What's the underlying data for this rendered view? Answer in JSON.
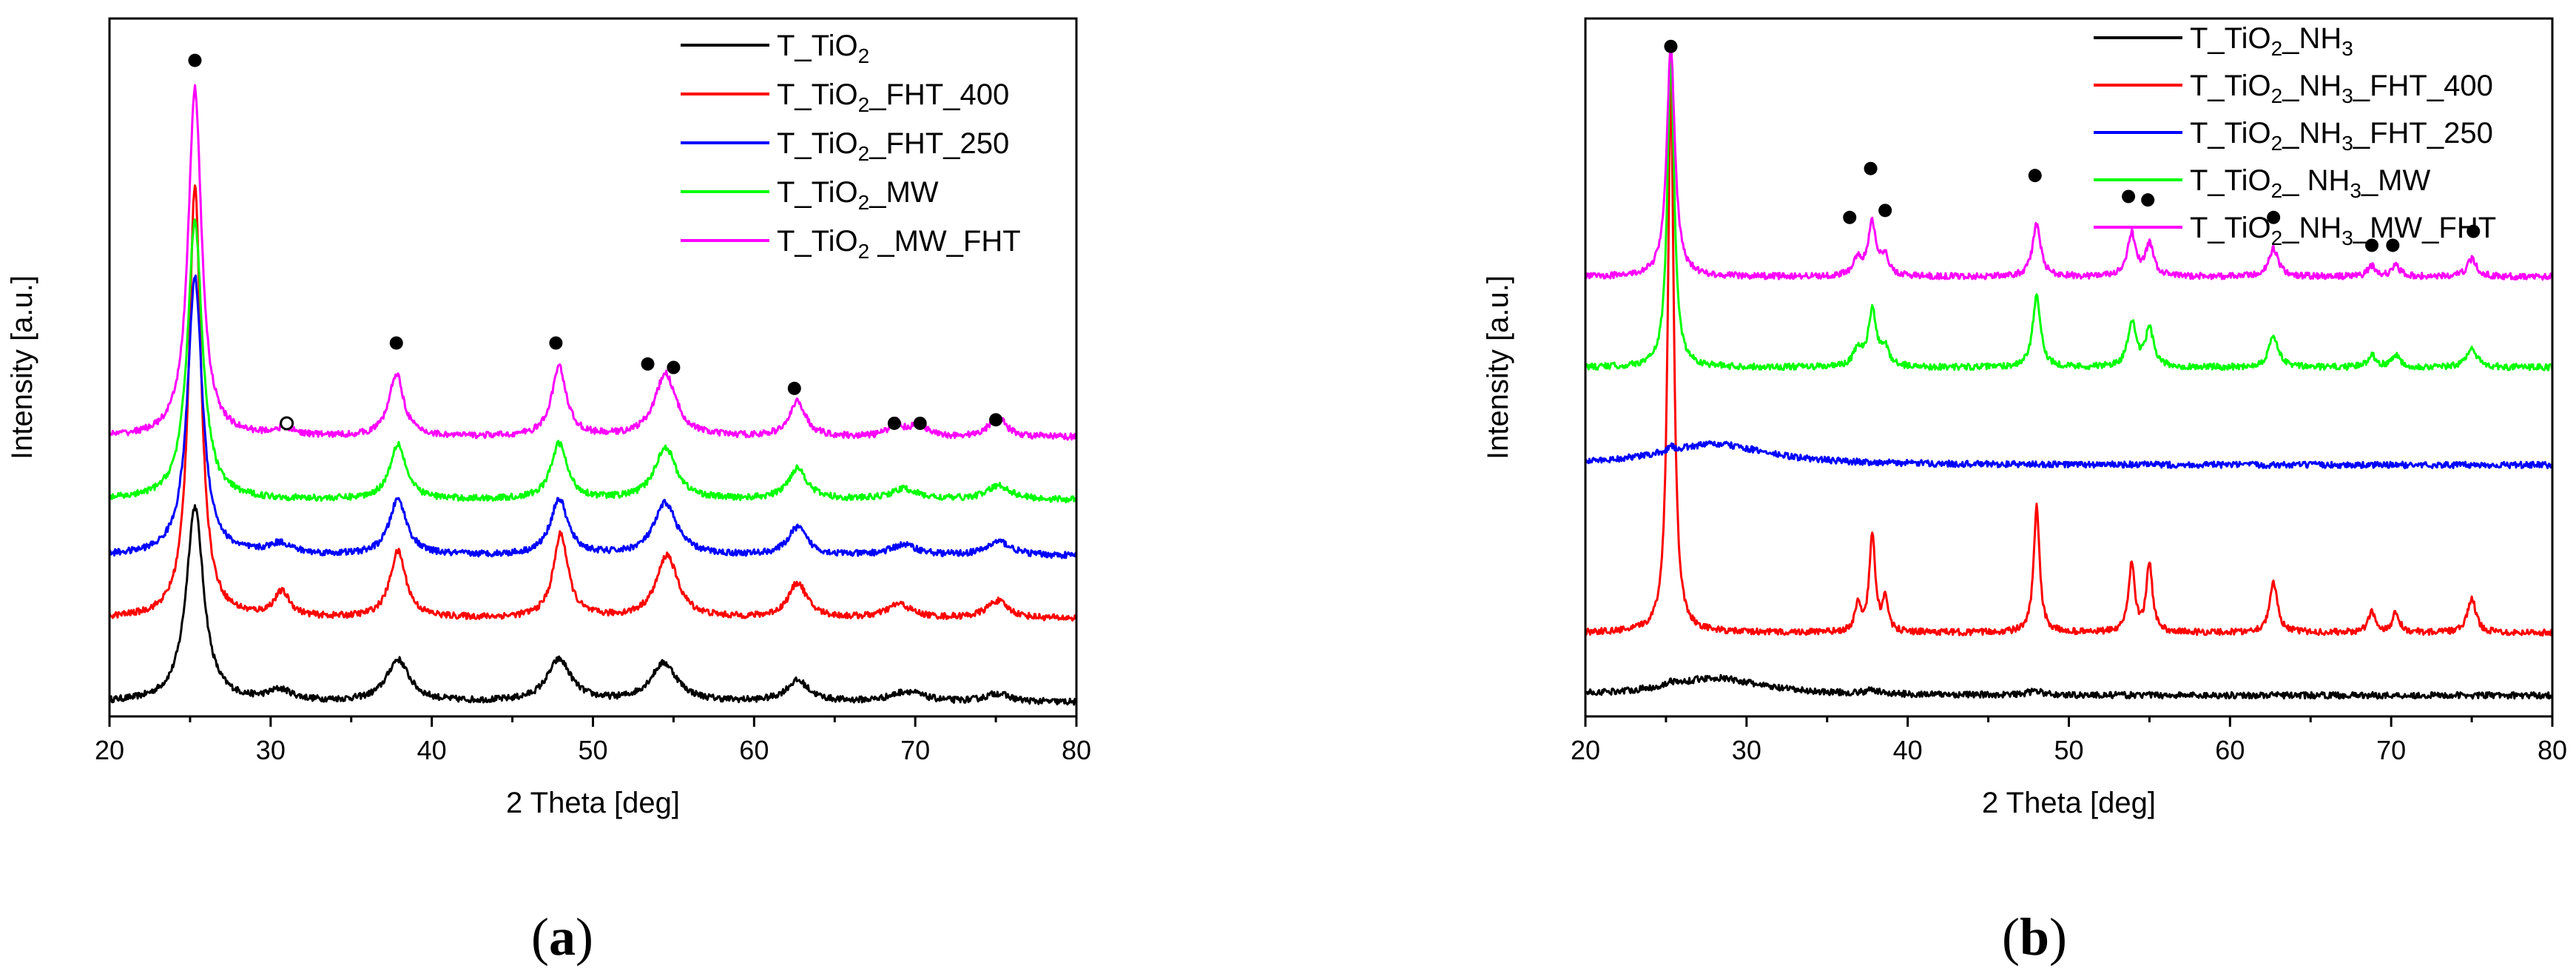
{
  "chart_data": [
    {
      "panel_label": "a",
      "type": "line",
      "xlabel": "2 Theta [deg]",
      "ylabel": "Intensity [a.u.]",
      "xlim": [
        20,
        80
      ],
      "ylim": [
        0,
        100
      ],
      "xticks": [
        "20",
        "30",
        "40",
        "50",
        "60",
        "70",
        "80"
      ],
      "legend_position": "top-right",
      "series": [
        {
          "name": "T_TiO2",
          "legend": [
            "T_TiO",
            "2",
            ""
          ],
          "color": "#000000",
          "offset": 2,
          "peaks": [
            [
              25.3,
              28,
              0.65
            ],
            [
              30.6,
              1.5,
              0.9
            ],
            [
              37.9,
              6,
              0.85
            ],
            [
              47.9,
              6,
              0.9
            ],
            [
              54.4,
              5.5,
              1.0
            ],
            [
              62.7,
              3,
              0.85
            ],
            [
              69.5,
              1.5,
              1.2
            ],
            [
              75.1,
              1.2,
              0.9
            ]
          ]
        },
        {
          "name": "T_TiO2_FHT_400",
          "legend": [
            "T_TiO",
            "2",
            "_FHT_400"
          ],
          "color": "#ff0000",
          "offset": 14,
          "peaks": [
            [
              25.3,
              62,
              0.45
            ],
            [
              30.7,
              3.5,
              0.6
            ],
            [
              37.9,
              9.5,
              0.6
            ],
            [
              48.0,
              12,
              0.55
            ],
            [
              54.6,
              9,
              0.8
            ],
            [
              62.7,
              5,
              0.7
            ],
            [
              69.0,
              2,
              0.9
            ],
            [
              75.1,
              2.5,
              0.8
            ]
          ]
        },
        {
          "name": "T_TiO2_FHT_250",
          "legend": [
            "T_TiO",
            "2",
            "_FHT_250"
          ],
          "color": "#0000ff",
          "offset": 23,
          "peaks": [
            [
              25.3,
              40,
              0.55
            ],
            [
              30.6,
              1.5,
              0.9
            ],
            [
              37.9,
              8,
              0.65
            ],
            [
              47.9,
              8,
              0.65
            ],
            [
              54.5,
              7.5,
              0.85
            ],
            [
              62.7,
              4,
              0.7
            ],
            [
              69.3,
              1.5,
              1.0
            ],
            [
              75.2,
              2,
              0.9
            ]
          ]
        },
        {
          "name": "T_TiO2_MW",
          "legend": [
            "T_TiO",
            "2",
            "_MW"
          ],
          "color": "#00ff00",
          "offset": 31,
          "peaks": [
            [
              25.3,
              40,
              0.55
            ],
            [
              37.9,
              8,
              0.6
            ],
            [
              47.9,
              8,
              0.6
            ],
            [
              54.5,
              7.5,
              0.8
            ],
            [
              62.7,
              4.5,
              0.7
            ],
            [
              69.3,
              1.5,
              1.0
            ],
            [
              75.2,
              2,
              0.9
            ]
          ]
        },
        {
          "name": "T_TiO2_MW_FHT",
          "legend": [
            "T_TiO",
            "2",
            " _MW_FHT"
          ],
          "color": "#ff00ff",
          "offset": 40,
          "peaks": [
            [
              25.3,
              50,
              0.5
            ],
            [
              30.8,
              1,
              0.8
            ],
            [
              37.8,
              9,
              0.55
            ],
            [
              47.9,
              10,
              0.55
            ],
            [
              54.5,
              9,
              0.8
            ],
            [
              62.7,
              5,
              0.6
            ],
            [
              68.8,
              2,
              0.5
            ],
            [
              70.2,
              2,
              0.5
            ],
            [
              75.1,
              3,
              0.6
            ]
          ]
        }
      ],
      "annotations": [
        {
          "x": 25.3,
          "y": 94,
          "symbol": "filled-circle"
        },
        {
          "x": 31.0,
          "y": 42,
          "symbol": "open-circle"
        },
        {
          "x": 37.8,
          "y": 53.5,
          "symbol": "filled-circle"
        },
        {
          "x": 47.7,
          "y": 53.5,
          "symbol": "filled-circle"
        },
        {
          "x": 53.4,
          "y": 50.5,
          "symbol": "filled-circle"
        },
        {
          "x": 55.0,
          "y": 50.0,
          "symbol": "filled-circle"
        },
        {
          "x": 62.5,
          "y": 47.0,
          "symbol": "filled-circle"
        },
        {
          "x": 68.7,
          "y": 42.0,
          "symbol": "filled-circle"
        },
        {
          "x": 70.3,
          "y": 42.0,
          "symbol": "filled-circle"
        },
        {
          "x": 75.0,
          "y": 42.5,
          "symbol": "filled-circle"
        }
      ]
    },
    {
      "panel_label": "b",
      "type": "line",
      "xlabel": "2 Theta [deg]",
      "ylabel": "Intensity [a.u.]",
      "xlim": [
        20,
        80
      ],
      "ylim": [
        0,
        100
      ],
      "xticks": [
        "20",
        "30",
        "40",
        "50",
        "60",
        "70",
        "80"
      ],
      "legend_position": "top-right",
      "series": [
        {
          "name": "T_TiO2_NH3",
          "legend": [
            "T_TiO",
            "2",
            "_NH",
            "3",
            ""
          ],
          "color": "#000000",
          "offset": 3,
          "peaks": [
            [
              28.0,
              2.5,
              3.5
            ],
            [
              25.3,
              0.5,
              0.3
            ],
            [
              37.8,
              0.5,
              0.5
            ],
            [
              47.9,
              0.6,
              0.5
            ]
          ]
        },
        {
          "name": "T_TiO2_NH3_FHT_400",
          "legend": [
            "T_TiO",
            "2",
            "_NH",
            "3",
            "_FHT_400"
          ],
          "color": "#ff0000",
          "offset": 12,
          "peaks": [
            [
              25.3,
              80,
              0.22
            ],
            [
              36.9,
              4,
              0.2
            ],
            [
              37.8,
              14,
              0.22
            ],
            [
              38.6,
              4.5,
              0.2
            ],
            [
              48.0,
              18,
              0.22
            ],
            [
              53.9,
              10,
              0.22
            ],
            [
              55.0,
              10,
              0.22
            ],
            [
              62.7,
              7,
              0.3
            ],
            [
              68.8,
              3,
              0.25
            ],
            [
              70.3,
              3,
              0.25
            ],
            [
              75.0,
              5,
              0.3
            ]
          ]
        },
        {
          "name": "T_TiO2_NH3_FHT_250",
          "legend": [
            "T_TiO",
            "2",
            "_NH",
            "3",
            "_FHT_250"
          ],
          "color": "#0000ff",
          "offset": 36,
          "peaks": [
            [
              28.0,
              3,
              4.0
            ],
            [
              25.3,
              0.6,
              0.3
            ]
          ]
        },
        {
          "name": "T_TiO2_NH3_MW",
          "legend": [
            "T_TiO",
            "2",
            "_ NH",
            "3",
            "_MW"
          ],
          "color": "#00ff00",
          "offset": 50,
          "peaks": [
            [
              25.3,
              45,
              0.25
            ],
            [
              36.9,
              2.5,
              0.3
            ],
            [
              37.8,
              8,
              0.3
            ],
            [
              38.6,
              2.5,
              0.3
            ],
            [
              48.0,
              10,
              0.3
            ],
            [
              53.9,
              6.5,
              0.3
            ],
            [
              55.0,
              5.5,
              0.3
            ],
            [
              62.7,
              4.5,
              0.35
            ],
            [
              68.8,
              1.8,
              0.3
            ],
            [
              70.3,
              1.8,
              0.3
            ],
            [
              75.0,
              3,
              0.35
            ]
          ]
        },
        {
          "name": "T_TiO2_NH3_MW_FHT",
          "legend": [
            "T_TiO",
            "2",
            "_NH",
            "3",
            "_MW_FHT"
          ],
          "color": "#ff00ff",
          "offset": 63,
          "peaks": [
            [
              25.3,
              33,
              0.3
            ],
            [
              36.9,
              2.5,
              0.3
            ],
            [
              37.8,
              7.5,
              0.3
            ],
            [
              38.6,
              2.5,
              0.3
            ],
            [
              48.0,
              7.5,
              0.3
            ],
            [
              53.9,
              6,
              0.3
            ],
            [
              55.0,
              4.5,
              0.3
            ],
            [
              62.7,
              4,
              0.35
            ],
            [
              68.8,
              1.5,
              0.3
            ],
            [
              70.3,
              1.5,
              0.3
            ],
            [
              75.0,
              2.5,
              0.35
            ]
          ]
        }
      ],
      "annotations": [
        {
          "x": 25.3,
          "y": 96,
          "symbol": "filled-circle"
        },
        {
          "x": 37.7,
          "y": 78.5,
          "symbol": "filled-circle"
        },
        {
          "x": 36.4,
          "y": 71.5,
          "symbol": "filled-circle"
        },
        {
          "x": 38.6,
          "y": 72.5,
          "symbol": "filled-circle"
        },
        {
          "x": 47.9,
          "y": 77.5,
          "symbol": "filled-circle"
        },
        {
          "x": 53.7,
          "y": 74.5,
          "symbol": "filled-circle"
        },
        {
          "x": 54.9,
          "y": 74.0,
          "symbol": "filled-circle"
        },
        {
          "x": 62.7,
          "y": 71.5,
          "symbol": "filled-circle"
        },
        {
          "x": 68.8,
          "y": 67.5,
          "symbol": "filled-circle"
        },
        {
          "x": 70.1,
          "y": 67.5,
          "symbol": "filled-circle"
        },
        {
          "x": 75.1,
          "y": 69.5,
          "symbol": "filled-circle"
        }
      ]
    }
  ]
}
